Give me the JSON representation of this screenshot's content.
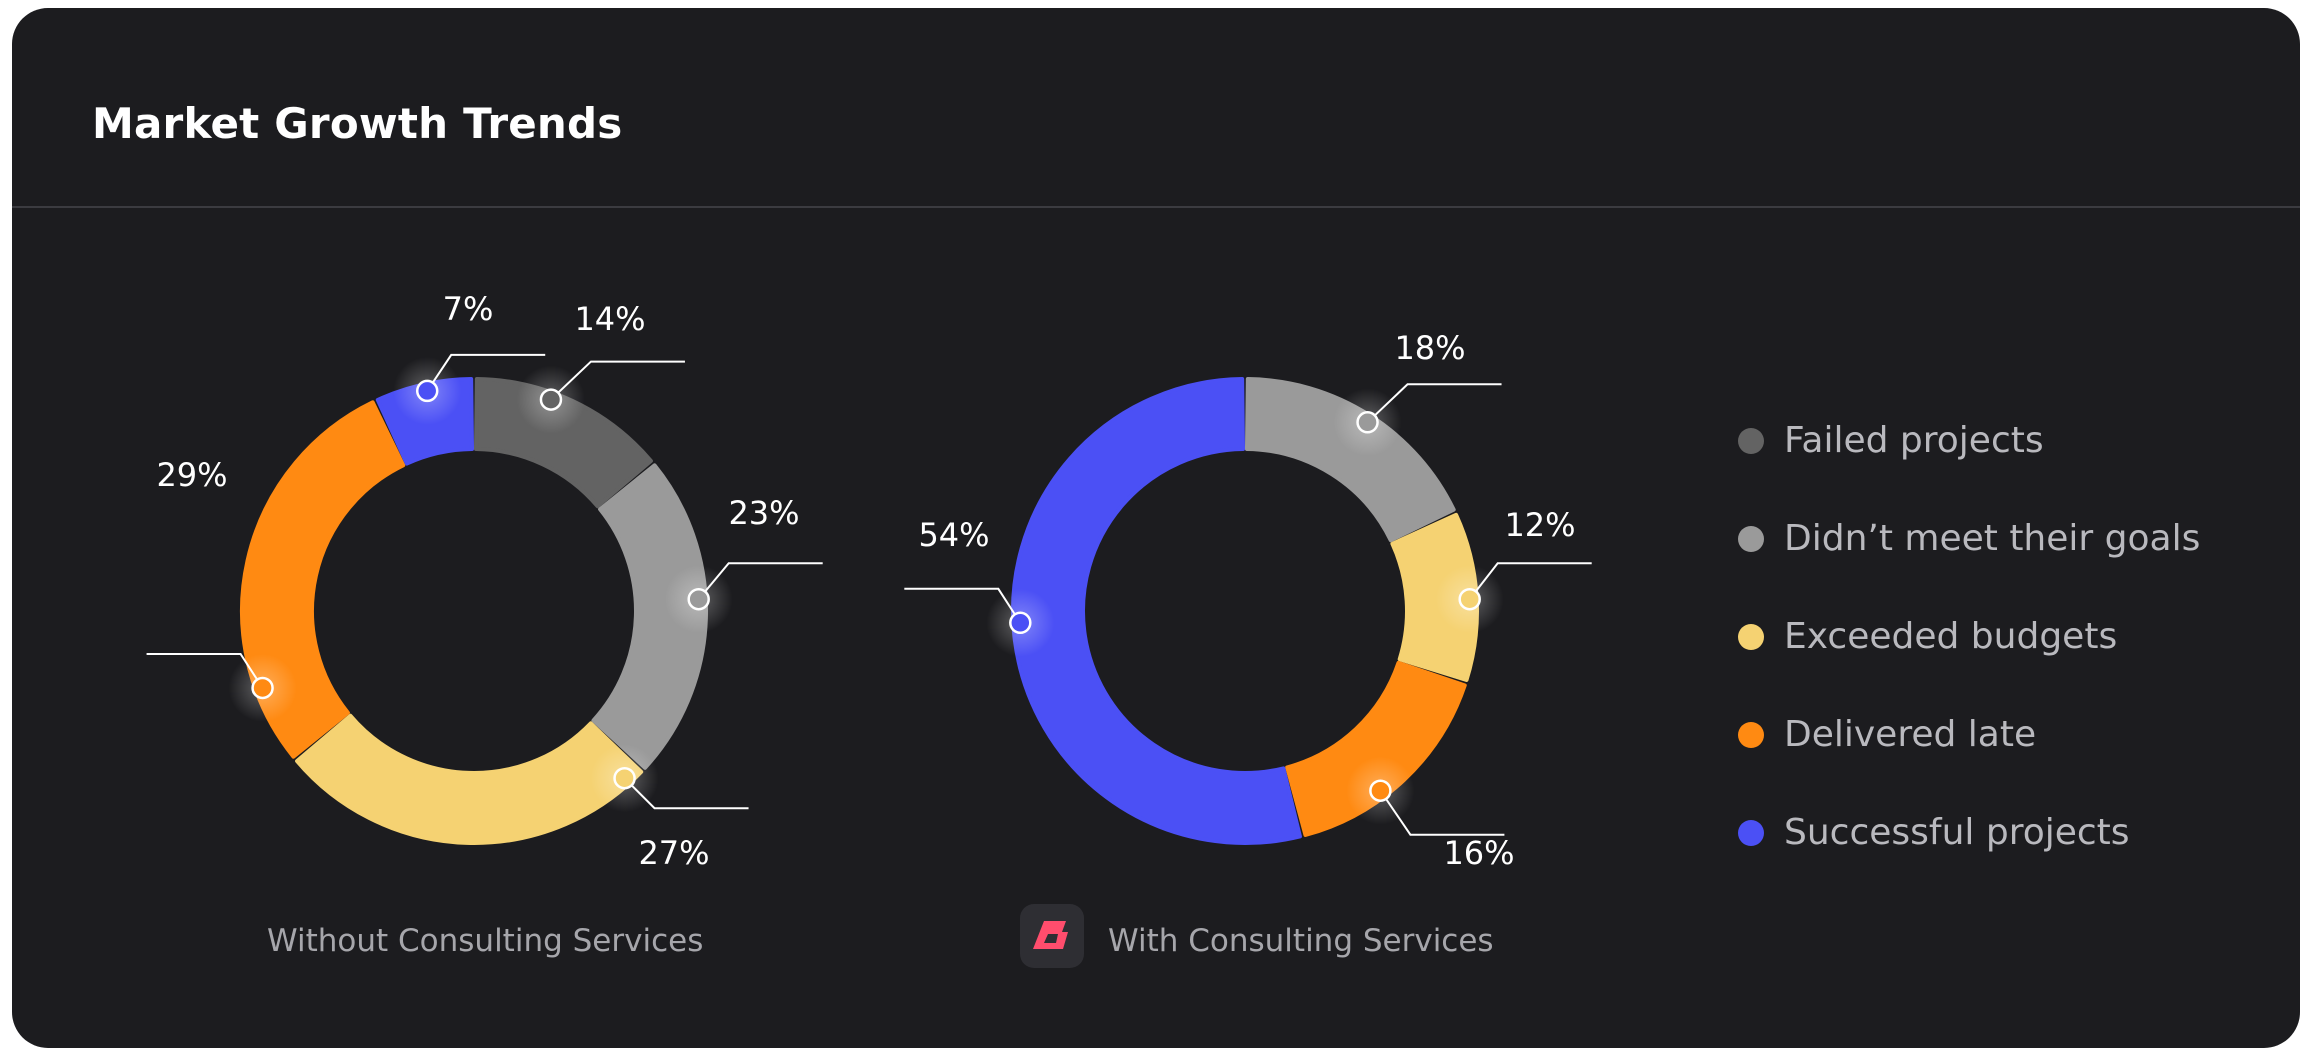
{
  "header": {
    "title": "Market Growth Trends"
  },
  "legend": {
    "items": [
      {
        "label": "Failed projects",
        "color": "#636363"
      },
      {
        "label": "Didn’t meet their goals",
        "color": "#9a9a9a"
      },
      {
        "label": "Exceeded budgets",
        "color": "#f5d272"
      },
      {
        "label": "Delivered late",
        "color": "#ff8a12"
      },
      {
        "label": "Successful projects",
        "color": "#4b50f5"
      }
    ]
  },
  "brand": {
    "icon": "brand-logo-icon",
    "color": "#ff4d6d"
  },
  "chart_data": [
    {
      "type": "pie",
      "variant": "donut",
      "title": "Without Consulting Services",
      "categories": [
        "Failed projects",
        "Didn’t meet their goals",
        "Exceeded budgets",
        "Delivered late",
        "Successful projects"
      ],
      "values": [
        14,
        23,
        27,
        29,
        7
      ],
      "labels": [
        "14%",
        "23%",
        "27%",
        "29%",
        "7%"
      ],
      "colors": [
        "#636363",
        "#9a9a9a",
        "#f5d272",
        "#ff8a12",
        "#4b50f5"
      ]
    },
    {
      "type": "pie",
      "variant": "donut",
      "title": "With Consulting Services",
      "categories": [
        "Didn’t meet their goals",
        "Exceeded budgets",
        "Delivered late",
        "Successful projects"
      ],
      "values": [
        18,
        12,
        16,
        54
      ],
      "labels": [
        "18%",
        "12%",
        "16%",
        "54%"
      ],
      "colors": [
        "#9a9a9a",
        "#f5d272",
        "#ff8a12",
        "#4b50f5"
      ]
    }
  ]
}
